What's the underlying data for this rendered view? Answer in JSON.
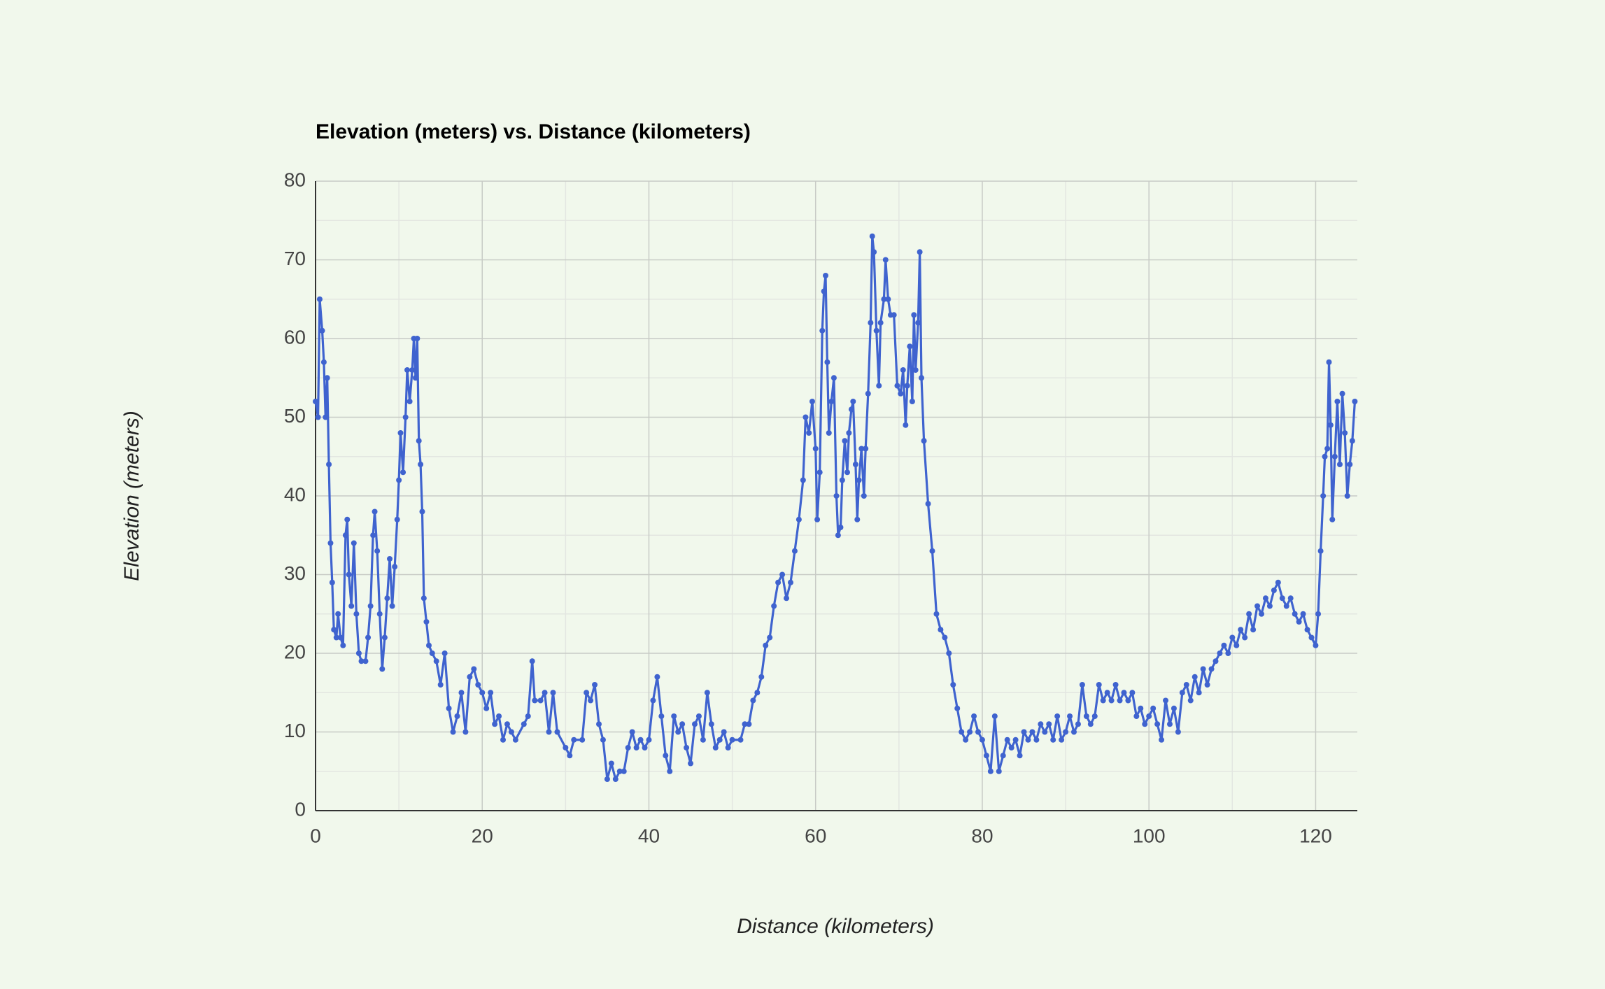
{
  "chart_data": {
    "type": "line",
    "title": "Elevation (meters) vs. Distance (kilometers)",
    "x_label": "Distance (kilometers)",
    "y_label": "Elevation (meters)",
    "xlim": [
      0,
      125
    ],
    "xticks": [
      0,
      20,
      40,
      60,
      80,
      100,
      120
    ],
    "ylim": [
      0,
      80
    ],
    "yticks": [
      0,
      10,
      20,
      30,
      40,
      50,
      60,
      70,
      80
    ],
    "grid": true,
    "minor_grid": true,
    "x": [
      0,
      0.3,
      0.5,
      0.8,
      1,
      1.2,
      1.4,
      1.6,
      1.8,
      2,
      2.2,
      2.5,
      2.7,
      3,
      3.3,
      3.6,
      3.8,
      4,
      4.3,
      4.6,
      4.9,
      5.2,
      5.5,
      6,
      6.3,
      6.6,
      6.9,
      7.1,
      7.4,
      7.7,
      8,
      8.3,
      8.6,
      8.9,
      9.2,
      9.5,
      9.8,
      10,
      10.2,
      10.5,
      10.8,
      11,
      11.3,
      11.6,
      11.8,
      12,
      12.2,
      12.4,
      12.6,
      12.8,
      13,
      13.3,
      13.6,
      14,
      14.5,
      15,
      15.5,
      16,
      16.5,
      17,
      17.5,
      18,
      18.5,
      19,
      19.5,
      20,
      20.5,
      21,
      21.5,
      22,
      22.5,
      23,
      23.5,
      24,
      25,
      25.5,
      26,
      26.3,
      27,
      27.5,
      28,
      28.5,
      29,
      30,
      30.5,
      31,
      32,
      32.5,
      33,
      33.5,
      34,
      34.5,
      35,
      35.5,
      36,
      36.5,
      37,
      37.5,
      38,
      38.5,
      39,
      39.5,
      40,
      40.5,
      41,
      41.5,
      42,
      42.5,
      43,
      43.5,
      44,
      44.5,
      45,
      45.5,
      46,
      46.5,
      47,
      47.5,
      48,
      48.5,
      49,
      49.5,
      50,
      51,
      51.5,
      52,
      52.5,
      53,
      53.5,
      54,
      54.5,
      55,
      55.5,
      56,
      56.5,
      57,
      57.5,
      58,
      58.5,
      58.8,
      59.2,
      59.6,
      60,
      60.2,
      60.5,
      60.8,
      61,
      61.2,
      61.4,
      61.6,
      61.9,
      62.2,
      62.5,
      62.7,
      63,
      63.2,
      63.5,
      63.8,
      64,
      64.3,
      64.5,
      64.8,
      65,
      65.2,
      65.5,
      65.8,
      66,
      66.3,
      66.6,
      66.8,
      67,
      67.3,
      67.6,
      67.8,
      68.2,
      68.4,
      68.7,
      69,
      69.4,
      69.8,
      70.2,
      70.5,
      70.8,
      71,
      71.3,
      71.6,
      71.8,
      72,
      72.3,
      72.5,
      72.7,
      73,
      73.5,
      74,
      74.5,
      75,
      75.5,
      76,
      76.5,
      77,
      77.5,
      78,
      78.5,
      79,
      79.5,
      80,
      80.5,
      81,
      81.5,
      82,
      82.5,
      83,
      83.5,
      84,
      84.5,
      85,
      85.5,
      86,
      86.5,
      87,
      87.5,
      88,
      88.5,
      89,
      89.5,
      90,
      90.5,
      91,
      91.5,
      92,
      92.5,
      93,
      93.5,
      94,
      94.5,
      95,
      95.5,
      96,
      96.5,
      97,
      97.5,
      98,
      98.5,
      99,
      99.5,
      100,
      100.5,
      101,
      101.5,
      102,
      102.5,
      103,
      103.5,
      104,
      104.5,
      105,
      105.5,
      106,
      106.5,
      107,
      107.5,
      108,
      108.5,
      109,
      109.5,
      110,
      110.5,
      111,
      111.5,
      112,
      112.5,
      113,
      113.5,
      114,
      114.5,
      115,
      115.5,
      116,
      116.5,
      117,
      117.5,
      118,
      118.5,
      119,
      119.5,
      120,
      120.3,
      120.6,
      120.9,
      121.1,
      121.4,
      121.6,
      121.8,
      122,
      122.3,
      122.6,
      122.9,
      123.2,
      123.5,
      123.8,
      124.1,
      124.4,
      124.7
    ],
    "series": [
      {
        "color": "#3f63cf",
        "values": [
          52,
          50,
          65,
          61,
          57,
          50,
          55,
          44,
          34,
          29,
          23,
          22,
          25,
          22,
          21,
          35,
          37,
          30,
          26,
          34,
          25,
          20,
          19,
          19,
          22,
          26,
          35,
          38,
          33,
          25,
          18,
          22,
          27,
          32,
          26,
          31,
          37,
          42,
          48,
          43,
          50,
          56,
          52,
          56,
          60,
          55,
          60,
          47,
          44,
          38,
          27,
          24,
          21,
          20,
          19,
          16,
          20,
          13,
          10,
          12,
          15,
          10,
          17,
          18,
          16,
          15,
          13,
          15,
          11,
          12,
          9,
          11,
          10,
          9,
          11,
          12,
          19,
          14,
          14,
          15,
          10,
          15,
          10,
          8,
          7,
          9,
          9,
          15,
          14,
          16,
          11,
          9,
          4,
          6,
          4,
          5,
          5,
          8,
          10,
          8,
          9,
          8,
          9,
          14,
          17,
          12,
          7,
          5,
          12,
          10,
          11,
          8,
          6,
          11,
          12,
          9,
          15,
          11,
          8,
          9,
          10,
          8,
          9,
          9,
          11,
          11,
          14,
          15,
          17,
          21,
          22,
          26,
          29,
          30,
          27,
          29,
          33,
          37,
          42,
          50,
          48,
          52,
          46,
          37,
          43,
          61,
          66,
          68,
          57,
          48,
          52,
          55,
          40,
          35,
          36,
          42,
          47,
          43,
          48,
          51,
          52,
          44,
          37,
          42,
          46,
          40,
          46,
          53,
          62,
          73,
          71,
          61,
          54,
          62,
          65,
          70,
          65,
          63,
          63,
          54,
          53,
          56,
          49,
          54,
          59,
          52,
          63,
          56,
          62,
          71,
          55,
          47,
          39,
          33,
          25,
          23,
          22,
          20,
          16,
          13,
          10,
          9,
          10,
          12,
          10,
          9,
          7,
          5,
          12,
          5,
          7,
          9,
          8,
          9,
          7,
          10,
          9,
          10,
          9,
          11,
          10,
          11,
          9,
          12,
          9,
          10,
          12,
          10,
          11,
          16,
          12,
          11,
          12,
          16,
          14,
          15,
          14,
          16,
          14,
          15,
          14,
          15,
          12,
          13,
          11,
          12,
          13,
          11,
          9,
          14,
          11,
          13,
          10,
          15,
          16,
          14,
          17,
          15,
          18,
          16,
          18,
          19,
          20,
          21,
          20,
          22,
          21,
          23,
          22,
          25,
          23,
          26,
          25,
          27,
          26,
          28,
          29,
          27,
          26,
          27,
          25,
          24,
          25,
          23,
          22,
          21,
          25,
          33,
          40,
          45,
          46,
          57,
          49,
          37,
          45,
          52,
          44,
          53,
          48,
          40,
          44,
          47,
          52
        ]
      }
    ]
  }
}
